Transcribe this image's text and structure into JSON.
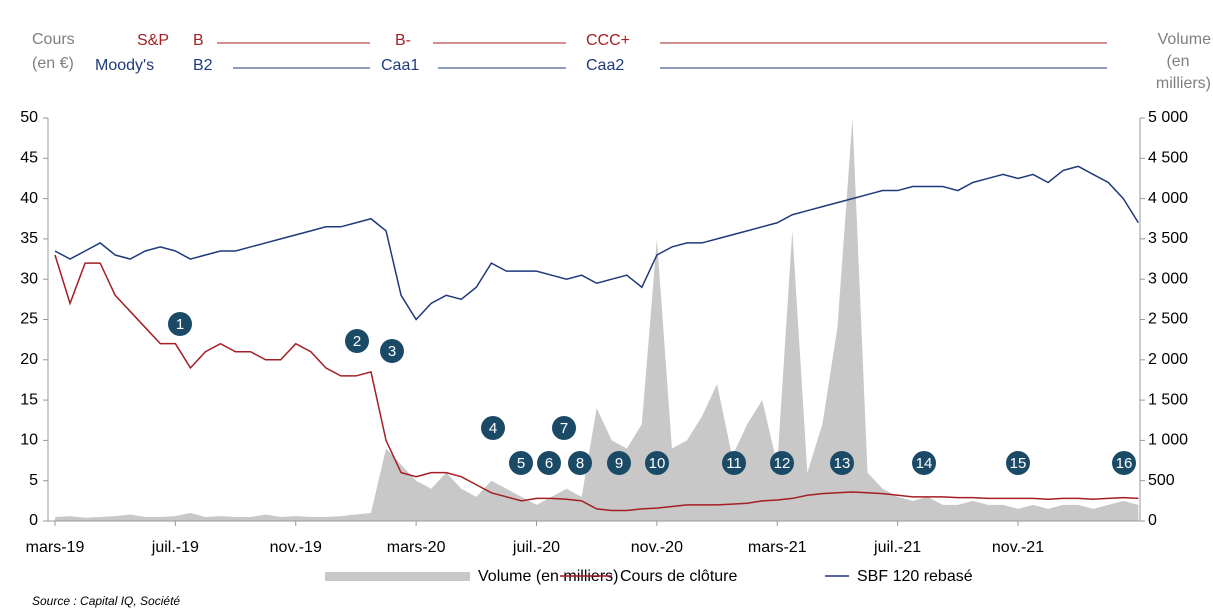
{
  "chart_data": {
    "type": "line",
    "ylabel": [
      "Cours",
      "(en €)"
    ],
    "y2label": [
      "Volume",
      "(en",
      "milliers)"
    ],
    "ratings": {
      "sp_label": "S&P",
      "sp": [
        "B",
        "B-",
        "CCC+"
      ],
      "moodys_label": "Moody's",
      "moodys": [
        "B2",
        "Caa1",
        "Caa2"
      ]
    },
    "categories": [
      "mars-19",
      null,
      null,
      null,
      null,
      null,
      null,
      null,
      "juil.-19",
      null,
      null,
      null,
      null,
      null,
      null,
      null,
      "nov.-19",
      null,
      null,
      null,
      null,
      null,
      null,
      null,
      "mars-20",
      null,
      null,
      null,
      null,
      null,
      null,
      null,
      "juil.-20",
      null,
      null,
      null,
      null,
      null,
      null,
      null,
      "nov.-20",
      null,
      null,
      null,
      null,
      null,
      null,
      null,
      "mars-21",
      null,
      null,
      null,
      null,
      null,
      null,
      null,
      "juil.-21",
      null,
      null,
      null,
      null,
      null,
      null,
      null,
      "nov.-21",
      null,
      null,
      null,
      null,
      null,
      null,
      null,
      null
    ],
    "series": [
      {
        "name": "Volume (en milliers)",
        "color": "#c8c8c8",
        "kind": "area",
        "axis": "y2",
        "values": [
          50,
          60,
          40,
          50,
          60,
          80,
          50,
          50,
          60,
          100,
          50,
          60,
          50,
          50,
          80,
          50,
          60,
          50,
          50,
          60,
          80,
          100,
          900,
          700,
          500,
          400,
          600,
          400,
          300,
          500,
          400,
          300,
          200,
          300,
          400,
          300,
          1400,
          1000,
          900,
          1200,
          3500,
          900,
          1000,
          1300,
          1700,
          800,
          1200,
          1500,
          700,
          3600,
          600,
          1200,
          2400,
          5000,
          600,
          400,
          300,
          250,
          300,
          200,
          200,
          250,
          200,
          200,
          150,
          200,
          150,
          200,
          200,
          150,
          200,
          250,
          200
        ]
      },
      {
        "name": "Cours de clôture",
        "color": "#a31f24",
        "kind": "line",
        "values": [
          33,
          27,
          32,
          32,
          28,
          26,
          24,
          22,
          22,
          19,
          21,
          22,
          21,
          21,
          20,
          20,
          22,
          21,
          19,
          18,
          18,
          18.5,
          10,
          6,
          5.5,
          6,
          6,
          5.5,
          4.5,
          3.5,
          3,
          2.5,
          2.8,
          2.8,
          2.7,
          2.5,
          1.5,
          1.3,
          1.3,
          1.5,
          1.6,
          1.8,
          2,
          2,
          2,
          2.1,
          2.2,
          2.5,
          2.6,
          2.8,
          3.2,
          3.4,
          3.5,
          3.6,
          3.5,
          3.4,
          3.2,
          3,
          3,
          3,
          2.9,
          2.9,
          2.8,
          2.8,
          2.8,
          2.8,
          2.7,
          2.8,
          2.8,
          2.7,
          2.8,
          2.9,
          2.8
        ]
      },
      {
        "name": "SBF 120 rebasé",
        "color": "#1f3a7a",
        "kind": "line",
        "values": [
          33.5,
          32.5,
          33.5,
          34.5,
          33,
          32.5,
          33.5,
          34,
          33.5,
          32.5,
          33,
          33.5,
          33.5,
          34,
          34.5,
          35,
          35.5,
          36,
          36.5,
          36.5,
          37,
          37.5,
          36,
          28,
          25,
          27,
          28,
          27.5,
          29,
          32,
          31,
          31,
          31,
          30.5,
          30,
          30.5,
          29.5,
          30,
          30.5,
          29,
          33,
          34,
          34.5,
          34.5,
          35,
          35.5,
          36,
          36.5,
          37,
          38,
          38.5,
          39,
          39.5,
          40,
          40.5,
          41,
          41,
          41.5,
          41.5,
          41.5,
          41,
          42,
          42.5,
          43,
          42.5,
          43,
          42,
          43.5,
          44,
          43,
          42,
          40,
          37
        ]
      }
    ],
    "ylim": [
      0,
      50
    ],
    "yticks": [
      0,
      5,
      10,
      15,
      20,
      25,
      30,
      35,
      40,
      45,
      50
    ],
    "y2lim": [
      0,
      5000
    ],
    "y2ticks": [
      0,
      500,
      {
        "value": 1000,
        "label": "1 000"
      },
      {
        "value": 1500,
        "label": "1 500"
      },
      {
        "value": 2000,
        "label": "2 000"
      },
      {
        "value": 2500,
        "label": "2 500"
      },
      {
        "value": 3000,
        "label": "3 000"
      },
      {
        "value": 3500,
        "label": "3 500"
      },
      {
        "value": 4000,
        "label": "4 000"
      },
      {
        "value": 4500,
        "label": "4 500"
      },
      {
        "value": 5000,
        "label": "5 000"
      }
    ],
    "events": [
      "1",
      "2",
      "3",
      "4",
      "5",
      "6",
      "7",
      "8",
      "9",
      "10",
      "11",
      "12",
      "13",
      "14",
      "15",
      "16"
    ],
    "source": "Source : Capital IQ, Société"
  }
}
